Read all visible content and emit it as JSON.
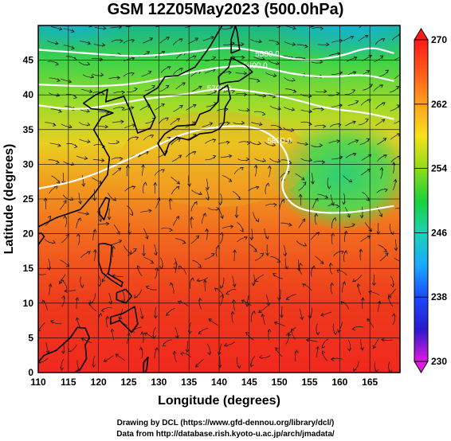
{
  "title": "GSM 12Z05May2023 (500.0hPa)",
  "chart_data": {
    "type": "heatmap",
    "title": "GSM 12Z05May2023 (500.0hPa)",
    "xlabel": "Longitude (degrees)",
    "ylabel": "Latitude  (degrees)",
    "xlim": [
      110,
      170
    ],
    "ylim": [
      0,
      50
    ],
    "x_ticks": [
      "110",
      "115",
      "120",
      "125",
      "130",
      "135",
      "140",
      "145",
      "150",
      "155",
      "160",
      "165"
    ],
    "y_ticks": [
      "0",
      "5",
      "10",
      "15",
      "20",
      "25",
      "30",
      "35",
      "40",
      "45"
    ],
    "grid": true,
    "colorbar": {
      "range": [
        230,
        270
      ],
      "labels": [
        "270",
        "262",
        "254",
        "246",
        "238",
        "230"
      ],
      "placement": "right"
    },
    "contours": [
      {
        "label": "5500.0",
        "points": [
          [
            110,
            46.5
          ],
          [
            118,
            46
          ],
          [
            126,
            45.5
          ],
          [
            134,
            46
          ],
          [
            142,
            47
          ],
          [
            148,
            46
          ],
          [
            154,
            44.8
          ],
          [
            160,
            45.5
          ],
          [
            165,
            47
          ],
          [
            169,
            46
          ]
        ]
      },
      {
        "label": "5600.0",
        "points": [
          [
            110,
            41.5
          ],
          [
            118,
            41.2
          ],
          [
            126,
            41.5
          ],
          [
            134,
            43
          ],
          [
            140,
            44
          ],
          [
            146,
            44.3
          ],
          [
            152,
            43
          ],
          [
            158,
            42.5
          ],
          [
            164,
            43
          ],
          [
            169,
            42
          ]
        ]
      },
      {
        "label": "5700.0",
        "points": [
          [
            110,
            38.5
          ],
          [
            116,
            37.8
          ],
          [
            122,
            38.5
          ],
          [
            128,
            39.5
          ],
          [
            134,
            40
          ],
          [
            140,
            41
          ],
          [
            146,
            40.5
          ],
          [
            152,
            39.5
          ],
          [
            158,
            38
          ],
          [
            164,
            37.5
          ],
          [
            169,
            36.5
          ]
        ]
      },
      {
        "label": "5800.0",
        "points": [
          [
            110,
            26.5
          ],
          [
            116,
            27.5
          ],
          [
            122,
            29.5
          ],
          [
            128,
            32
          ],
          [
            134,
            34.5
          ],
          [
            140,
            35.5
          ],
          [
            146,
            35.5
          ],
          [
            150,
            33.5
          ],
          [
            152,
            30
          ],
          [
            150,
            27
          ],
          [
            152,
            24
          ],
          [
            156,
            23
          ],
          [
            162,
            23
          ],
          [
            169,
            24
          ]
        ]
      }
    ],
    "coast_label": "5800.0"
  },
  "credits": {
    "line1": "Drawing by DCL (https://www.gfd-dennou.org/library/dcl/)",
    "line2": "Data from http://database.rish.kyoto-u.ac.jp/arch/jmadata/"
  }
}
